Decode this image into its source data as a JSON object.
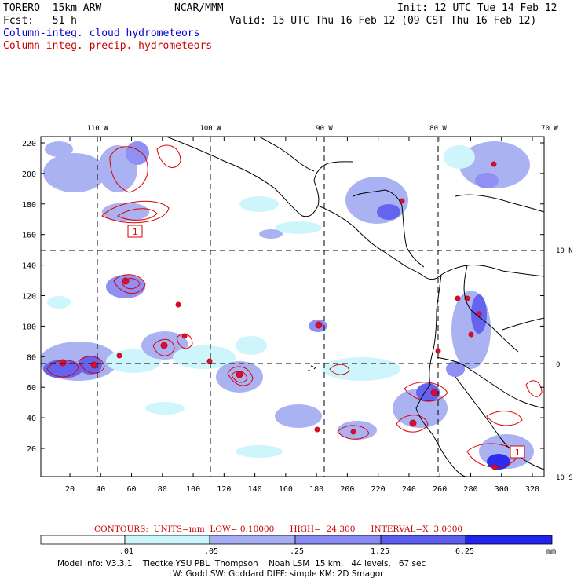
{
  "header": {
    "model": "TORERO  15km ARW",
    "center": "NCAR/MMM",
    "init": "Init: 12 UTC Tue 14 Feb 12",
    "fcst": "Fcst:   51 h",
    "valid": "Valid: 15 UTC Thu 16 Feb 12 (09 CST Thu 16 Feb 12)",
    "field1": "Column-integ. cloud hydrometeors",
    "field2": "Column-integ. precip. hydrometeors"
  },
  "colors": {
    "field1": "#0000cc",
    "field2": "#cc0000",
    "precip_contour": "#dd0000",
    "coast": "#000000",
    "shade_levels": [
      "#ffffff",
      "#ccf5fc",
      "#a6aef2",
      "#8a8af4",
      "#5c5cee",
      "#2222ee"
    ]
  },
  "map": {
    "x_ticks": [
      "20",
      "40",
      "60",
      "80",
      "100",
      "120",
      "140",
      "160",
      "180",
      "200",
      "220",
      "240",
      "260",
      "280",
      "300",
      "320"
    ],
    "y_ticks": [
      "220",
      "200",
      "180",
      "160",
      "140",
      "120",
      "100",
      "80",
      "60",
      "40",
      "20"
    ],
    "lon_labels": [
      "110 W",
      "100 W",
      "90 W",
      "80 W",
      "70 W"
    ],
    "lat_labels": [
      "10 N",
      "0",
      "10 S"
    ],
    "contour_labels": [
      "1",
      "1"
    ]
  },
  "colorbar": {
    "title": "CONTOURS:  UNITS=mm  LOW= 0.10000      HIGH=  24.300      INTERVAL=X  3.0000",
    "labels": [
      ".01",
      ".05",
      ".25",
      "1.25",
      "6.25"
    ],
    "unit": "mm"
  },
  "footer": {
    "line1": "Model Info: V3.3.1    Tiedtke YSU PBL  Thompson    Noah LSM  15 km,   44 levels,   67 sec",
    "line2": "LW: Godd SW: Goddard DIFF: simple KM: 2D Smagor"
  }
}
